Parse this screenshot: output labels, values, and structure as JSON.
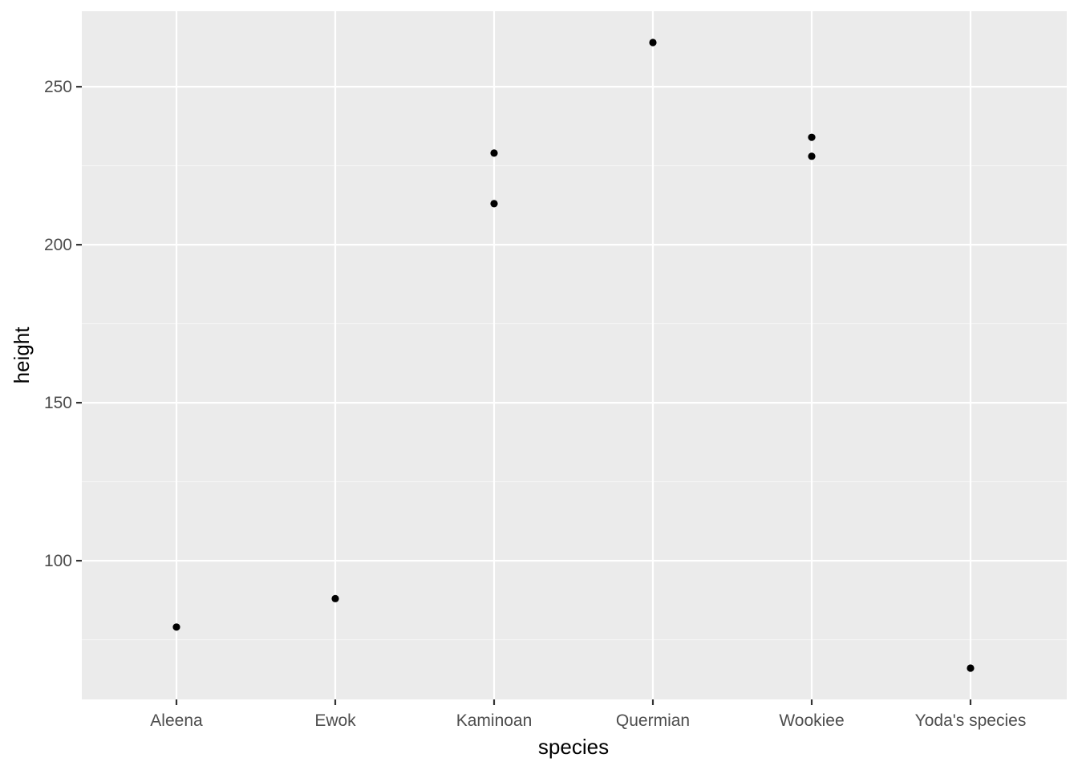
{
  "chart_data": {
    "type": "scatter",
    "xlabel": "species",
    "ylabel": "height",
    "categories": [
      "Aleena",
      "Ewok",
      "Kaminoan",
      "Quermian",
      "Wookiee",
      "Yoda's species"
    ],
    "points": [
      {
        "x": "Aleena",
        "y": 79
      },
      {
        "x": "Ewok",
        "y": 88
      },
      {
        "x": "Kaminoan",
        "y": 229
      },
      {
        "x": "Kaminoan",
        "y": 213
      },
      {
        "x": "Quermian",
        "y": 264
      },
      {
        "x": "Wookiee",
        "y": 234
      },
      {
        "x": "Wookiee",
        "y": 228
      },
      {
        "x": "Yoda's species",
        "y": 66
      }
    ],
    "yticks": [
      100,
      150,
      200,
      250
    ],
    "ytick_labels": [
      "100",
      "150",
      "200",
      "250"
    ],
    "ylim": [
      56.1,
      273.9
    ],
    "grid": true,
    "colors": {
      "panel_background": "#ebebeb",
      "grid_major": "#ffffff",
      "grid_minor": "#f5f5f5",
      "point": "#000000",
      "tick": "#333333"
    }
  }
}
